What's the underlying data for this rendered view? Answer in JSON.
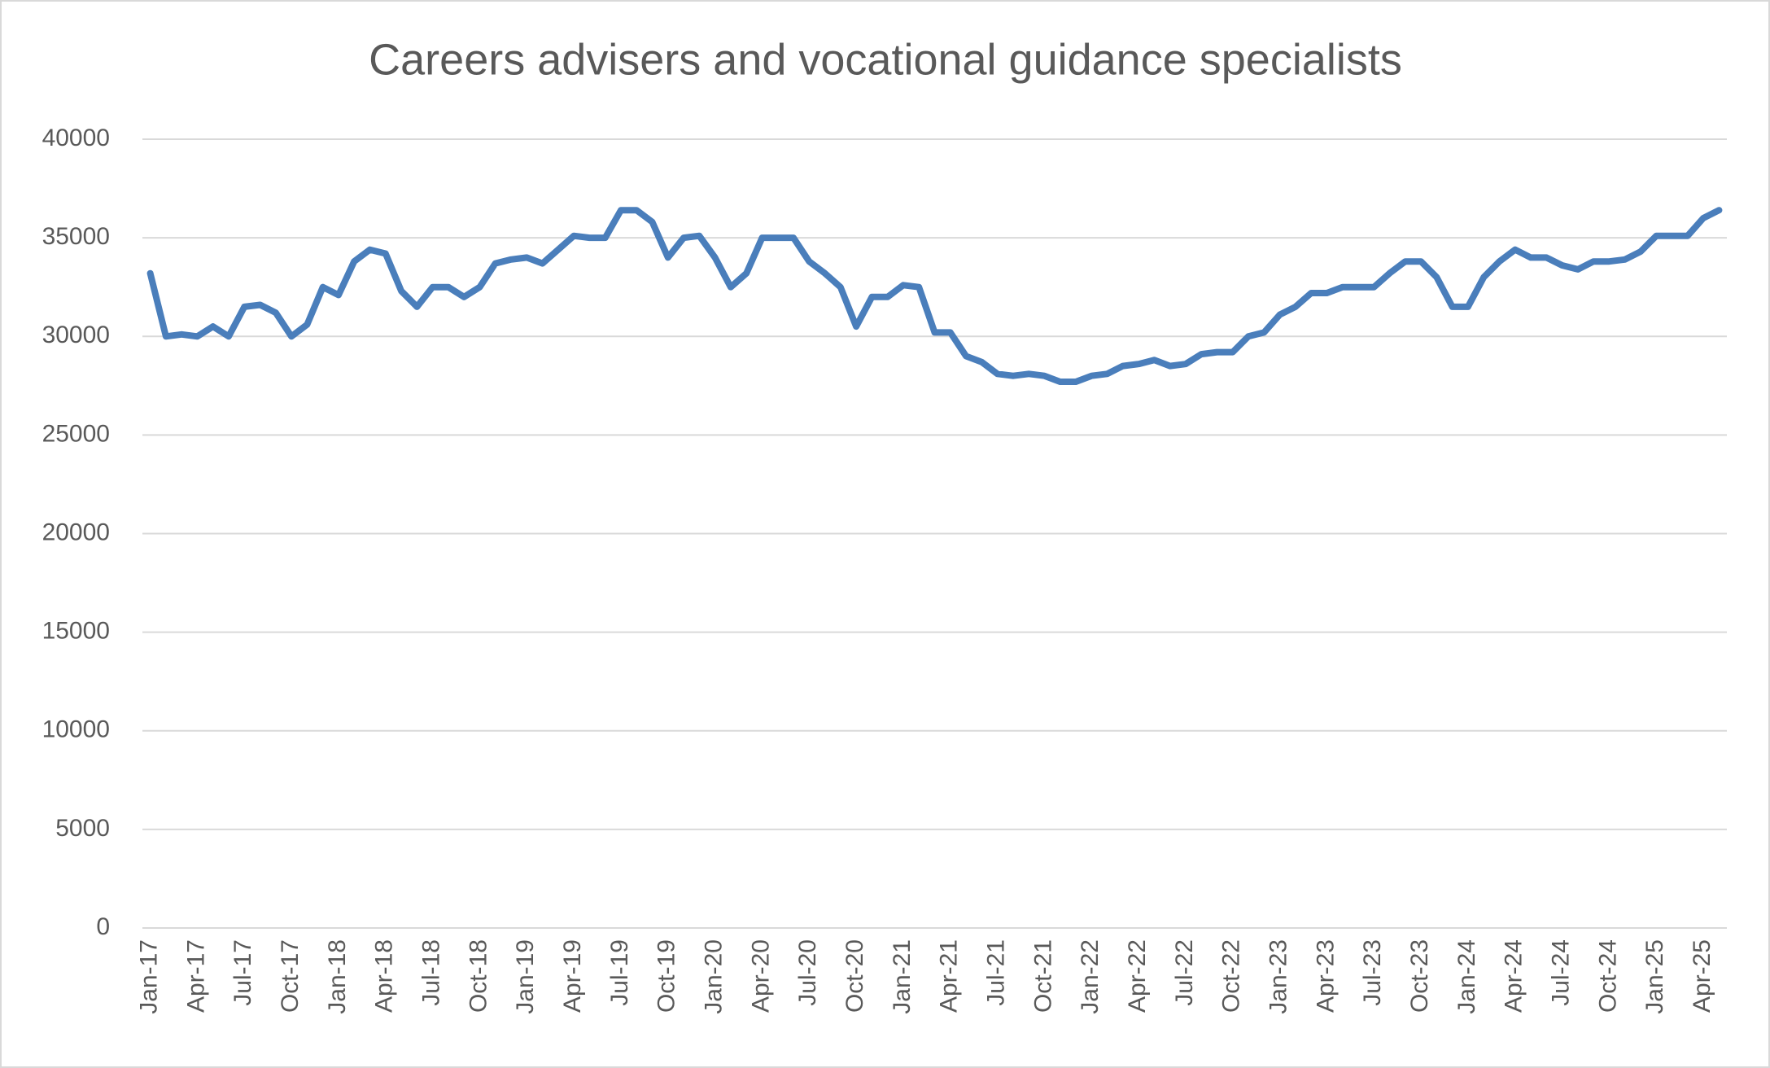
{
  "chart_data": {
    "type": "line",
    "title": "Careers advisers and vocational guidance specialists",
    "categories": [
      "Jan-17",
      null,
      null,
      "Apr-17",
      null,
      null,
      "Jul-17",
      null,
      null,
      "Oct-17",
      null,
      null,
      "Jan-18",
      null,
      null,
      "Apr-18",
      null,
      null,
      "Jul-18",
      null,
      null,
      "Oct-18",
      null,
      null,
      "Jan-19",
      null,
      null,
      "Apr-19",
      null,
      null,
      "Jul-19",
      null,
      null,
      "Oct-19",
      null,
      null,
      "Jan-20",
      null,
      null,
      "Apr-20",
      null,
      null,
      "Jul-20",
      null,
      null,
      "Oct-20",
      null,
      null,
      "Jan-21",
      null,
      null,
      "Apr-21",
      null,
      null,
      "Jul-21",
      null,
      null,
      "Oct-21",
      null,
      null,
      "Jan-22",
      null,
      null,
      "Apr-22",
      null,
      null,
      "Jul-22",
      null,
      null,
      "Oct-22",
      null,
      null,
      "Jan-23",
      null,
      null,
      "Apr-23",
      null,
      null,
      "Jul-23",
      null,
      null,
      "Oct-23",
      null,
      null,
      "Jan-24",
      null,
      null,
      "Apr-24",
      null,
      null,
      "Jul-24",
      null,
      null,
      "Oct-24",
      null,
      null,
      "Jan-25",
      null,
      null,
      "Apr-25",
      null
    ],
    "values": [
      33200,
      30000,
      30100,
      30000,
      30500,
      30000,
      31500,
      31600,
      31200,
      30000,
      30600,
      32500,
      32100,
      33800,
      34400,
      34200,
      32300,
      31500,
      32500,
      32500,
      32000,
      32500,
      33700,
      33900,
      34000,
      33700,
      34400,
      35100,
      35000,
      35000,
      36400,
      36400,
      35800,
      34000,
      35000,
      35100,
      34000,
      32500,
      33200,
      35000,
      35000,
      35000,
      33800,
      33200,
      32500,
      30500,
      32000,
      32000,
      32600,
      32500,
      30200,
      30200,
      29000,
      28700,
      28100,
      28000,
      28100,
      28000,
      27700,
      27700,
      28000,
      28100,
      28500,
      28600,
      28800,
      28500,
      28600,
      29100,
      29200,
      29200,
      30000,
      30200,
      31100,
      31500,
      32200,
      32200,
      32500,
      32500,
      32500,
      33200,
      33800,
      33800,
      33000,
      31500,
      31500,
      33000,
      33800,
      34400,
      34000,
      34000,
      33600,
      33400,
      33800,
      33800,
      33900,
      34300,
      35100,
      35100,
      35100,
      36000,
      36400
    ],
    "color": "#4a7ebb",
    "ylim": [
      0,
      40000
    ],
    "yticks": [
      0,
      5000,
      10000,
      15000,
      20000,
      25000,
      30000,
      35000,
      40000
    ],
    "grid": true
  }
}
